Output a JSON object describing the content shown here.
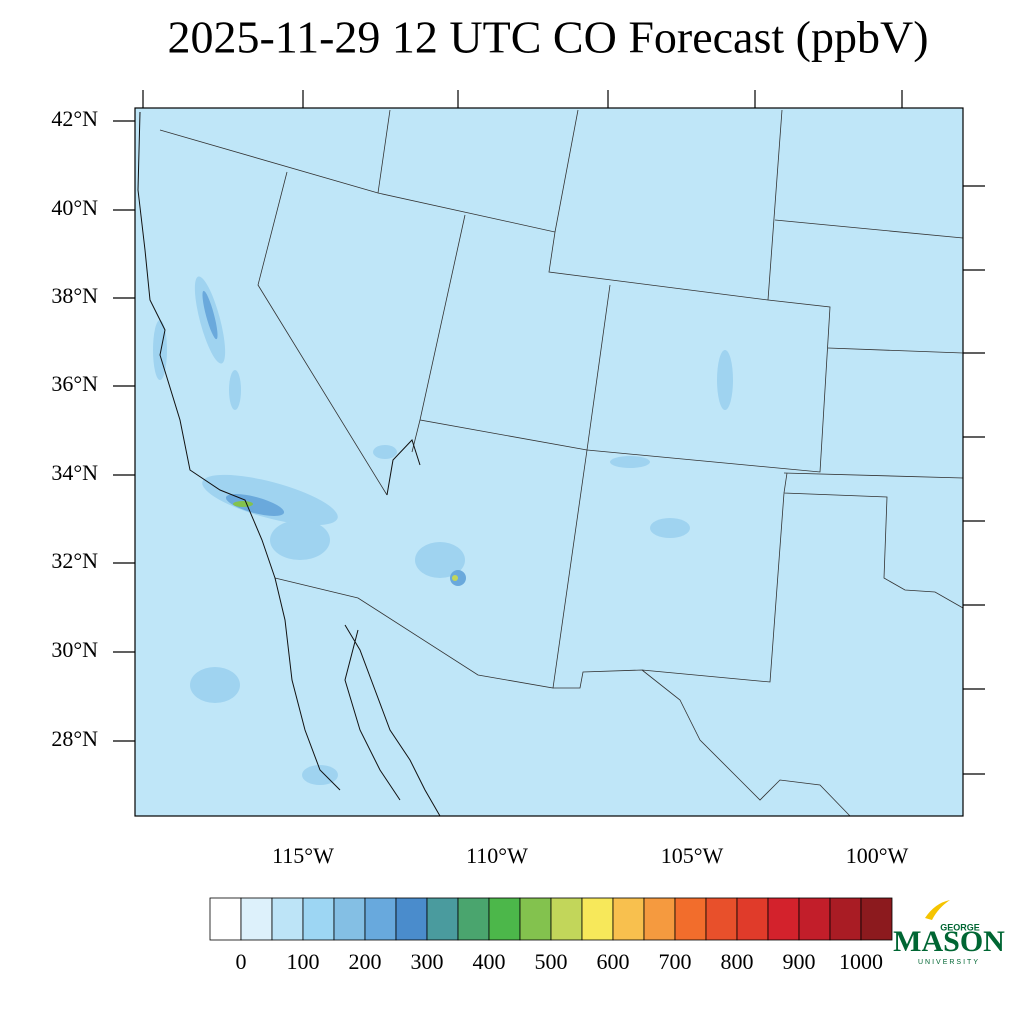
{
  "title": "2025-11-29 12 UTC CO Forecast (ppbV)",
  "map": {
    "lat_ticks": [
      "42°N",
      "40°N",
      "38°N",
      "36°N",
      "34°N",
      "32°N",
      "30°N",
      "28°N"
    ],
    "lon_ticks": [
      "115°W",
      "110°W",
      "105°W",
      "100°W"
    ]
  },
  "colorbar": {
    "colors": [
      "#ffffff",
      "#ddf1fb",
      "#bde4f7",
      "#9dd6f3",
      "#84bfe4",
      "#68a9dd",
      "#4a8ccc",
      "#4a9b9e",
      "#4aa56e",
      "#4cb74a",
      "#83c24e",
      "#c2d65a",
      "#f7e85a",
      "#f8c04e",
      "#f59a3f",
      "#f26d2c",
      "#e8502b",
      "#e03b2a",
      "#d3222c",
      "#c21e2a",
      "#a91c24",
      "#8c1a1e"
    ],
    "labels": [
      "0",
      "100",
      "200",
      "300",
      "400",
      "500",
      "600",
      "700",
      "800",
      "900",
      "1000"
    ]
  },
  "logo": {
    "top": "GEORGE",
    "main": "MASON",
    "bottom": "UNIVERSITY"
  }
}
